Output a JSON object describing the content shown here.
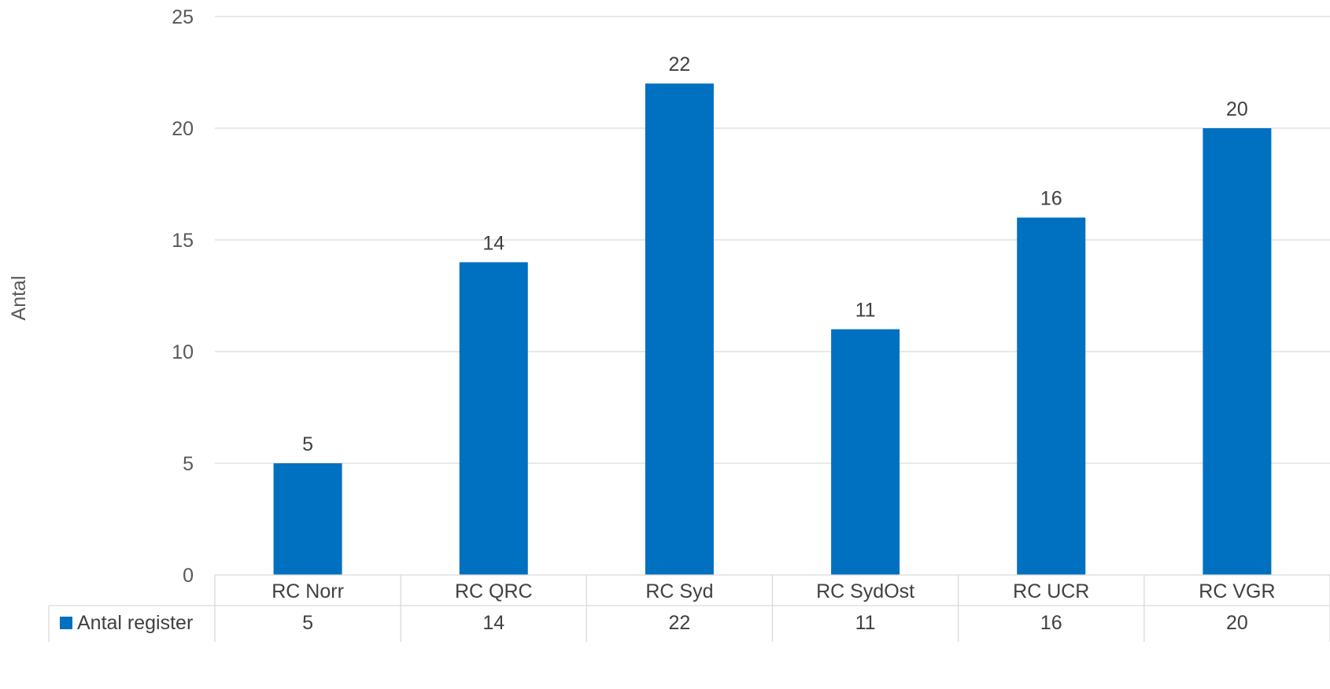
{
  "chart_data": {
    "type": "bar",
    "title": "",
    "xlabel": "",
    "ylabel": "Antal",
    "ylim": [
      0,
      25
    ],
    "yticks": [
      0,
      5,
      10,
      15,
      20,
      25
    ],
    "grid": true,
    "legend": "data-table",
    "data_table": true,
    "categories": [
      "RC Norr",
      "RC QRC",
      "RC Syd",
      "RC SydOst",
      "RC UCR",
      "RC VGR"
    ],
    "series": [
      {
        "name": "Antal register",
        "color": "#0070C0",
        "values": [
          5,
          14,
          22,
          11,
          16,
          20
        ]
      }
    ]
  }
}
